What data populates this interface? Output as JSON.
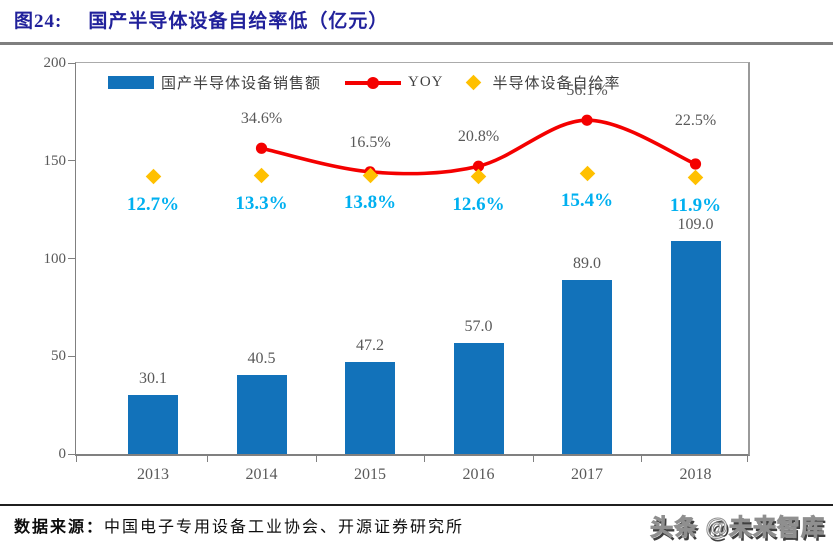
{
  "header": {
    "figure_label": "图24:",
    "title": "国产半导体设备自给率低（亿元）"
  },
  "chart_data": {
    "type": "combo",
    "title": "图24: 国产半导体设备自给率低（亿元）",
    "categories": [
      "2013",
      "2014",
      "2015",
      "2016",
      "2017",
      "2018"
    ],
    "series": [
      {
        "name": "国产半导体设备销售额",
        "type": "bar",
        "axis": "y1",
        "color": "#1272BA",
        "values": [
          30.1,
          40.5,
          47.2,
          57.0,
          89.0,
          109.0
        ],
        "labels": [
          "30.1",
          "40.5",
          "47.2",
          "57.0",
          "89.0",
          "109.0"
        ]
      },
      {
        "name": "YOY",
        "type": "line",
        "axis": "y2",
        "color": "#F40000",
        "values": [
          null,
          34.6,
          16.5,
          20.8,
          56.1,
          22.5
        ],
        "labels": [
          null,
          "34.6%",
          "16.5%",
          "20.8%",
          "56.1%",
          "22.5%"
        ]
      },
      {
        "name": "半导体设备自给率",
        "type": "scatter-diamond",
        "axis": "y2",
        "color": "#FFC000",
        "label_color": "#00B0F0",
        "values": [
          12.7,
          13.3,
          13.8,
          12.6,
          15.4,
          11.9
        ],
        "labels": [
          "12.7%",
          "13.3%",
          "13.8%",
          "12.6%",
          "15.4%",
          "11.9%"
        ]
      }
    ],
    "y1": {
      "ticks": [
        "0",
        "50",
        "100",
        "150",
        "200"
      ],
      "lim": [
        0,
        200
      ]
    },
    "y2": {
      "lim": [
        -200,
        100
      ],
      "visible": false
    },
    "grid": false,
    "legend_position": "top-inside"
  },
  "footer": {
    "source_label": "数据来源：",
    "source": "中国电子专用设备工业协会、开源证券研究所",
    "watermark": "头条 @未来智库"
  }
}
